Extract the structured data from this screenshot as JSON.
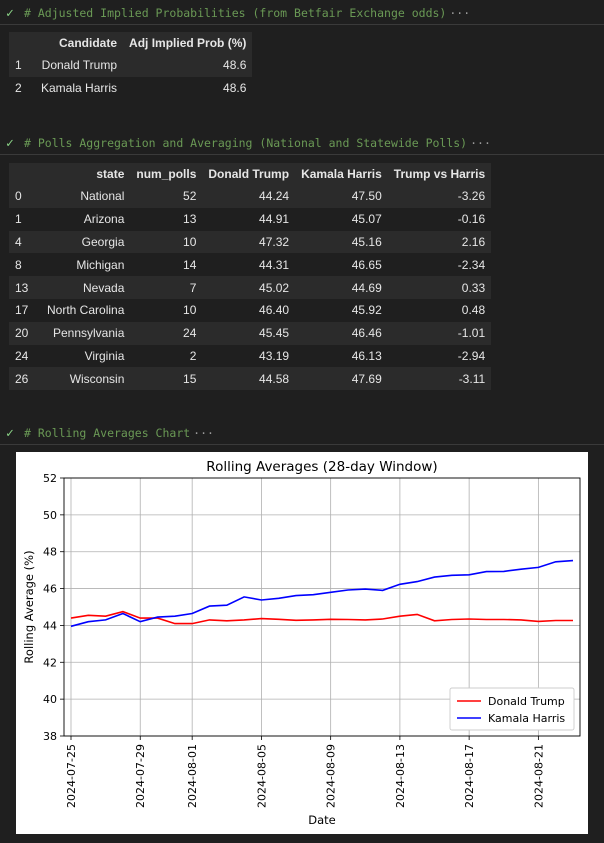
{
  "cells": [
    {
      "status_icon": "check-icon",
      "comment": "# Adjusted Implied Probabilities (from Betfair Exchange odds)",
      "ellipsis": "···"
    },
    {
      "status_icon": "check-icon",
      "comment": "# Polls Aggregation and Averaging (National and Statewide Polls)",
      "ellipsis": "···"
    },
    {
      "status_icon": "check-icon",
      "comment": "# Rolling Averages Chart",
      "ellipsis": "···"
    }
  ],
  "prob_table": {
    "columns": [
      "",
      "Candidate",
      "Adj Implied Prob (%)"
    ],
    "rows": [
      [
        "1",
        "Donald Trump",
        "48.6"
      ],
      [
        "2",
        "Kamala Harris",
        "48.6"
      ]
    ]
  },
  "polls_table": {
    "columns": [
      "",
      "state",
      "num_polls",
      "Donald Trump",
      "Kamala Harris",
      "Trump vs Harris"
    ],
    "rows": [
      [
        "0",
        "National",
        "52",
        "44.24",
        "47.50",
        "-3.26"
      ],
      [
        "1",
        "Arizona",
        "13",
        "44.91",
        "45.07",
        "-0.16"
      ],
      [
        "4",
        "Georgia",
        "10",
        "47.32",
        "45.16",
        "2.16"
      ],
      [
        "8",
        "Michigan",
        "14",
        "44.31",
        "46.65",
        "-2.34"
      ],
      [
        "13",
        "Nevada",
        "7",
        "45.02",
        "44.69",
        "0.33"
      ],
      [
        "17",
        "North Carolina",
        "10",
        "46.40",
        "45.92",
        "0.48"
      ],
      [
        "20",
        "Pennsylvania",
        "24",
        "45.45",
        "46.46",
        "-1.01"
      ],
      [
        "24",
        "Virginia",
        "2",
        "43.19",
        "46.13",
        "-2.94"
      ],
      [
        "26",
        "Wisconsin",
        "15",
        "44.58",
        "47.69",
        "-3.11"
      ]
    ]
  },
  "chart_data": {
    "type": "line",
    "title": "Rolling Averages (28-day Window)",
    "xlabel": "Date",
    "ylabel": "Rolling Average (%)",
    "ylim": [
      38,
      52
    ],
    "yticks": [
      "38",
      "40",
      "42",
      "44",
      "46",
      "48",
      "50",
      "52"
    ],
    "xticks": [
      "2024-07-25",
      "2024-07-29",
      "2024-08-01",
      "2024-08-05",
      "2024-08-09",
      "2024-08-13",
      "2024-08-17",
      "2024-08-21"
    ],
    "grid": true,
    "legend_position": "lower-right",
    "x": [
      "2024-07-25",
      "2024-07-26",
      "2024-07-27",
      "2024-07-28",
      "2024-07-29",
      "2024-07-30",
      "2024-07-31",
      "2024-08-01",
      "2024-08-02",
      "2024-08-03",
      "2024-08-04",
      "2024-08-05",
      "2024-08-06",
      "2024-08-07",
      "2024-08-08",
      "2024-08-09",
      "2024-08-10",
      "2024-08-11",
      "2024-08-12",
      "2024-08-13",
      "2024-08-14",
      "2024-08-15",
      "2024-08-16",
      "2024-08-17",
      "2024-08-18",
      "2024-08-19",
      "2024-08-20",
      "2024-08-21",
      "2024-08-22",
      "2024-08-23"
    ],
    "series": [
      {
        "name": "Donald Trump",
        "color": "#ff0000",
        "values": [
          44.4,
          44.55,
          44.5,
          44.75,
          44.4,
          44.4,
          44.1,
          44.1,
          44.3,
          44.25,
          44.3,
          44.37,
          44.33,
          44.28,
          44.3,
          44.33,
          44.32,
          44.3,
          44.35,
          44.5,
          44.6,
          44.25,
          44.32,
          44.35,
          44.32,
          44.32,
          44.3,
          44.22,
          44.27,
          44.27
        ]
      },
      {
        "name": "Kamala Harris",
        "color": "#0000ff",
        "values": [
          43.95,
          44.2,
          44.3,
          44.65,
          44.2,
          44.45,
          44.5,
          44.65,
          45.05,
          45.1,
          45.55,
          45.38,
          45.47,
          45.62,
          45.67,
          45.8,
          45.92,
          45.97,
          45.9,
          46.23,
          46.38,
          46.62,
          46.72,
          46.75,
          46.92,
          46.93,
          47.05,
          47.15,
          47.45,
          47.52
        ]
      }
    ]
  }
}
